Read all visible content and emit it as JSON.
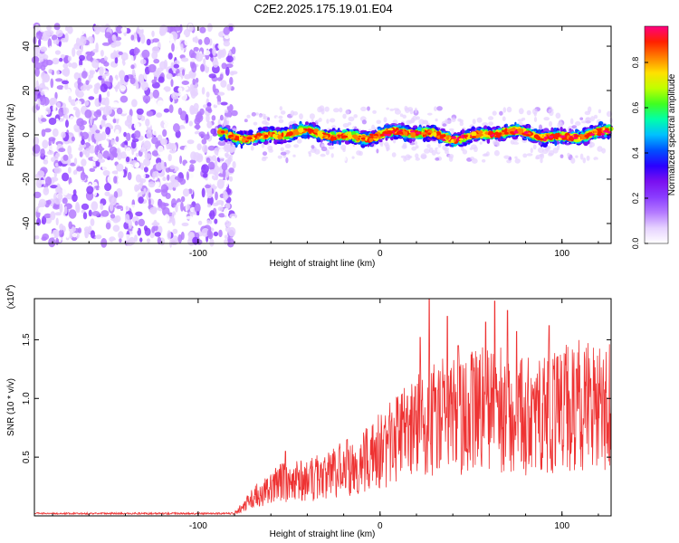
{
  "title": "C2E2.2025.175.19.01.E04",
  "chart_data": [
    {
      "type": "heatmap",
      "xlabel": "Height of straight line (km)",
      "ylabel": "Frequency (Hz)",
      "xlim": [
        -190,
        127
      ],
      "ylim": [
        -49,
        49
      ],
      "x_ticks": [
        -100,
        0,
        100
      ],
      "y_ticks": [
        -40,
        -20,
        0,
        20,
        40
      ],
      "colorbar": {
        "label": "Normalized spectral amplitude",
        "range": [
          0,
          0.96
        ],
        "ticks": [
          "0.0",
          "0.2",
          "0.4",
          "0.6",
          "0.8"
        ],
        "ticks_values": [
          0,
          0.2,
          0.4,
          0.6,
          0.8
        ],
        "colors": [
          "#ffffff",
          "#e6d2ff",
          "#b47aff",
          "#8a3cff",
          "#7a10f0",
          "#2a00ff",
          "#0050ff",
          "#00c0ff",
          "#00ffaa",
          "#40ff20",
          "#c0ff00",
          "#ffe000",
          "#ff8000",
          "#ff2000",
          "#ff0080"
        ]
      },
      "regions": [
        {
          "name": "noise",
          "x_range": [
            -190,
            -80
          ],
          "freq_range": [
            -49,
            49
          ],
          "amplitude_range": [
            0.02,
            0.2
          ]
        },
        {
          "name": "signal band",
          "x_range": [
            -88,
            127
          ],
          "center_freq_hz": 0,
          "half_width_hz": 5,
          "amplitude_range": [
            0.2,
            0.96
          ]
        }
      ]
    },
    {
      "type": "line",
      "xlabel": "Height of straight line (km)",
      "ylabel": "SNR (10 * v/v)",
      "y_multiplier": "(x10",
      "y_multiplier_exp": "4",
      "y_multiplier_close": ")",
      "xlim": [
        -190,
        127
      ],
      "ylim": [
        0,
        1.85
      ],
      "x_ticks": [
        -100,
        0,
        100
      ],
      "y_ticks": [
        "0.5",
        "1.0",
        "1.5"
      ],
      "y_ticks_values": [
        0.5,
        1.0,
        1.5
      ],
      "line_color": "#ee3333",
      "envelope": [
        {
          "x": -190,
          "y": 0.02
        },
        {
          "x": -80,
          "y": 0.02
        },
        {
          "x": -70,
          "y": 0.15
        },
        {
          "x": -60,
          "y": 0.25
        },
        {
          "x": -50,
          "y": 0.3
        },
        {
          "x": -40,
          "y": 0.3
        },
        {
          "x": -30,
          "y": 0.35
        },
        {
          "x": -20,
          "y": 0.4
        },
        {
          "x": -10,
          "y": 0.45
        },
        {
          "x": 0,
          "y": 0.55
        },
        {
          "x": 10,
          "y": 0.65
        },
        {
          "x": 20,
          "y": 0.8
        },
        {
          "x": 30,
          "y": 0.85
        },
        {
          "x": 40,
          "y": 0.85
        },
        {
          "x": 50,
          "y": 0.9
        },
        {
          "x": 60,
          "y": 0.9
        },
        {
          "x": 70,
          "y": 0.9
        },
        {
          "x": 80,
          "y": 0.85
        },
        {
          "x": 90,
          "y": 0.85
        },
        {
          "x": 100,
          "y": 0.9
        },
        {
          "x": 110,
          "y": 0.95
        },
        {
          "x": 127,
          "y": 0.95
        }
      ],
      "peaks": [
        {
          "x": -52,
          "y": 0.55
        },
        {
          "x": -35,
          "y": 0.42
        },
        {
          "x": -18,
          "y": 0.65
        },
        {
          "x": 5,
          "y": 0.85
        },
        {
          "x": 15,
          "y": 1.02
        },
        {
          "x": 22,
          "y": 1.52
        },
        {
          "x": 27,
          "y": 1.85
        },
        {
          "x": 37,
          "y": 1.7
        },
        {
          "x": 43,
          "y": 1.45
        },
        {
          "x": 58,
          "y": 1.65
        },
        {
          "x": 63,
          "y": 1.83
        },
        {
          "x": 70,
          "y": 1.75
        },
        {
          "x": 75,
          "y": 1.57
        },
        {
          "x": 93,
          "y": 1.62
        },
        {
          "x": 108,
          "y": 1.25
        }
      ]
    }
  ]
}
